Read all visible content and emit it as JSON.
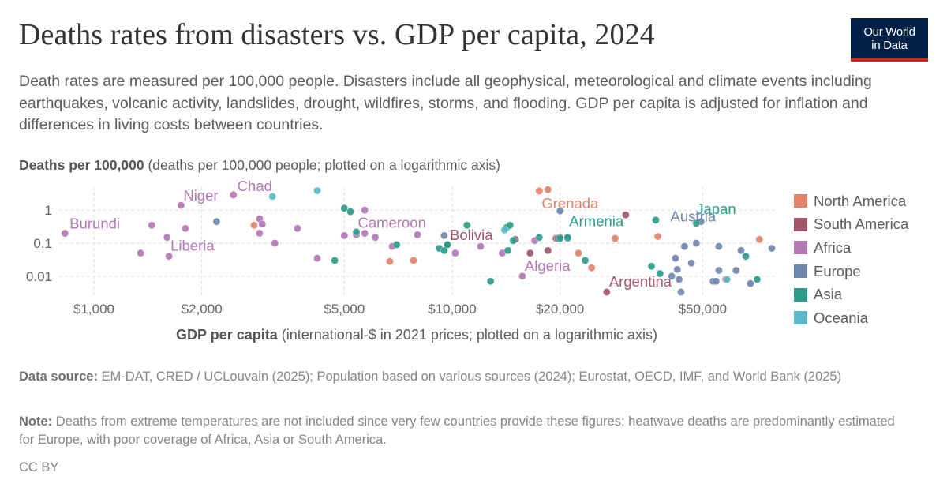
{
  "header": {
    "title": "Deaths rates from disasters vs. GDP per capita, 2024",
    "subtitle": "Death rates are measured per 100,000 people. Disasters include all geophysical, meteorological and climate events including earthquakes, volcanic activity, landslides, drought, wildfires, storms, and flooding. GDP per capita is adjusted for inflation and differences in living costs between countries.",
    "logo_line1": "Our World",
    "logo_line2": "in Data"
  },
  "chart_data": {
    "type": "scatter",
    "title": "Deaths rates from disasters vs. GDP per capita, 2024",
    "ylabel_bold": "Deaths per 100,000",
    "ylabel_rest": " (deaths per 100,000 people; plotted on a logarithmic axis)",
    "xlabel_bold": "GDP per capita",
    "xlabel_rest": " (international-$ in 2021 prices; plotted on a logarithmic axis)",
    "x_scale": "log",
    "y_scale": "log",
    "xlim": [
      800,
      80000
    ],
    "ylim": [
      0.0025,
      5
    ],
    "x_ticks": [
      {
        "value": 1000,
        "label": "$1,000"
      },
      {
        "value": 2000,
        "label": "$2,000"
      },
      {
        "value": 5000,
        "label": "$5,000"
      },
      {
        "value": 10000,
        "label": "$10,000"
      },
      {
        "value": 20000,
        "label": "$20,000"
      },
      {
        "value": 50000,
        "label": "$50,000"
      }
    ],
    "y_ticks": [
      {
        "value": 1,
        "label": "1"
      },
      {
        "value": 0.1,
        "label": "0.1"
      },
      {
        "value": 0.01,
        "label": "0.01"
      }
    ],
    "grid": true,
    "legend_position": "right",
    "series": [
      {
        "name": "North America",
        "color": "#e3826b",
        "points": [
          [
            17500,
            3.8
          ],
          [
            18500,
            4.2
          ],
          [
            2800,
            0.35
          ],
          [
            6700,
            0.028
          ],
          [
            7800,
            0.03
          ],
          [
            24500,
            0.018
          ],
          [
            22500,
            0.05
          ],
          [
            28500,
            0.14
          ],
          [
            37500,
            0.16
          ],
          [
            72000,
            0.13
          ],
          [
            58000,
            0.008
          ]
        ]
      },
      {
        "name": "South America",
        "color": "#a2566b",
        "points": [
          [
            30500,
            0.72
          ],
          [
            19500,
            0.14
          ],
          [
            20000,
            0.15
          ],
          [
            18500,
            0.06
          ],
          [
            15000,
            0.13
          ],
          [
            16500,
            0.05
          ],
          [
            9700,
            0.09
          ],
          [
            27000,
            0.0033
          ]
        ]
      },
      {
        "name": "Africa",
        "color": "#b477b6",
        "points": [
          [
            830,
            0.2
          ],
          [
            1750,
            1.4
          ],
          [
            2450,
            2.9
          ],
          [
            1450,
            0.35
          ],
          [
            1350,
            0.05
          ],
          [
            1600,
            0.15
          ],
          [
            1620,
            0.04
          ],
          [
            1800,
            0.28
          ],
          [
            2900,
            0.55
          ],
          [
            2950,
            0.38
          ],
          [
            2900,
            0.2
          ],
          [
            3200,
            0.1
          ],
          [
            3700,
            0.28
          ],
          [
            4200,
            0.035
          ],
          [
            5000,
            0.17
          ],
          [
            5700,
            1
          ],
          [
            5700,
            0.2
          ],
          [
            6100,
            0.15
          ],
          [
            6800,
            0.08
          ],
          [
            5400,
            0.18
          ],
          [
            8000,
            0.18
          ],
          [
            10200,
            0.05
          ],
          [
            12000,
            0.08
          ],
          [
            15700,
            0.01
          ],
          [
            17000,
            0.12
          ],
          [
            13800,
            0.05
          ]
        ]
      },
      {
        "name": "Europe",
        "color": "#7087ad",
        "points": [
          [
            2200,
            0.45
          ],
          [
            9500,
            0.17
          ],
          [
            20000,
            0.95
          ],
          [
            21000,
            0.14
          ],
          [
            19700,
            0.14
          ],
          [
            42000,
            0.035
          ],
          [
            42500,
            0.016
          ],
          [
            43000,
            0.008
          ],
          [
            43500,
            0.0033
          ],
          [
            44500,
            0.08
          ],
          [
            46500,
            0.025
          ],
          [
            48000,
            0.1
          ],
          [
            49500,
            0.45
          ],
          [
            53500,
            0.007
          ],
          [
            54500,
            0.007
          ],
          [
            55500,
            0.015
          ],
          [
            55500,
            0.08
          ],
          [
            62000,
            0.015
          ],
          [
            64000,
            0.06
          ],
          [
            68000,
            0.006
          ],
          [
            78000,
            0.07
          ],
          [
            41000,
            0.01
          ]
        ]
      },
      {
        "name": "Asia",
        "color": "#2c9c8b",
        "points": [
          [
            5000,
            1.15
          ],
          [
            5200,
            0.9
          ],
          [
            5400,
            0.22
          ],
          [
            4700,
            0.03
          ],
          [
            7000,
            0.09
          ],
          [
            9200,
            0.07
          ],
          [
            9500,
            0.06
          ],
          [
            9700,
            0.09
          ],
          [
            11000,
            0.35
          ],
          [
            12800,
            0.007
          ],
          [
            14200,
            0.3
          ],
          [
            14500,
            0.35
          ],
          [
            14800,
            0.12
          ],
          [
            14300,
            0.06
          ],
          [
            17500,
            0.15
          ],
          [
            20000,
            0.14
          ],
          [
            21000,
            0.15
          ],
          [
            23500,
            0.03
          ],
          [
            37000,
            0.5
          ],
          [
            38000,
            0.012
          ],
          [
            36000,
            0.02
          ],
          [
            48000,
            0.4
          ],
          [
            66000,
            0.04
          ],
          [
            71000,
            0.008
          ]
        ]
      },
      {
        "name": "Oceania",
        "color": "#5ab8c8",
        "points": [
          [
            3150,
            2.6
          ],
          [
            4200,
            3.9
          ],
          [
            14000,
            0.25
          ],
          [
            58500,
            0.008
          ]
        ]
      }
    ],
    "annotations": [
      {
        "text": "Burundi",
        "series": "Africa",
        "x": 830,
        "y": 0.2
      },
      {
        "text": "Niger",
        "series": "Africa",
        "x": 1750,
        "y": 1.4
      },
      {
        "text": "Chad",
        "series": "Africa",
        "x": 2450,
        "y": 2.9
      },
      {
        "text": "Liberia",
        "series": "Africa",
        "x": 1620,
        "y": 0.04
      },
      {
        "text": "Cameroon",
        "series": "Africa",
        "x": 5400,
        "y": 0.18
      },
      {
        "text": "Algeria",
        "series": "Africa",
        "x": 15700,
        "y": 0.01
      },
      {
        "text": "Grenada",
        "series": "North America",
        "x": 17500,
        "y": 3.8
      },
      {
        "text": "Bolivia",
        "series": "South America",
        "x": 9700,
        "y": 0.09
      },
      {
        "text": "Argentina",
        "series": "South America",
        "x": 27000,
        "y": 0.0033
      },
      {
        "text": "Armenia",
        "series": "Asia",
        "x": 21000,
        "y": 0.15
      },
      {
        "text": "Japan",
        "series": "Asia",
        "x": 48000,
        "y": 0.4
      },
      {
        "text": "Austria",
        "series": "Europe",
        "x": 49500,
        "y": 0.45
      }
    ]
  },
  "footer": {
    "source_label": "Data source:",
    "source_text": " EM-DAT, CRED / UCLouvain (2025); Population based on various sources (2024); Eurostat, OECD, IMF, and World Bank (2025)",
    "note_label": "Note:",
    "note_text": " Deaths from extreme temperatures are not included since very few countries provide these figures; heatwave deaths are predominantly estimated for Europe, with poor coverage of Africa, Asia or South America.",
    "license": "CC BY"
  }
}
